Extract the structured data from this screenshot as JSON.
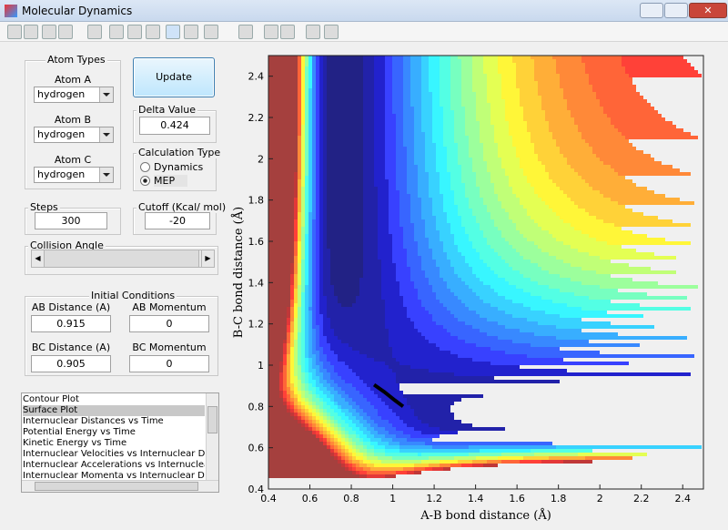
{
  "window": {
    "title": "Molecular Dynamics"
  },
  "atom_types": {
    "title": "Atom Types",
    "atoms": [
      {
        "label": "Atom A",
        "value": "hydrogen"
      },
      {
        "label": "Atom B",
        "value": "hydrogen"
      },
      {
        "label": "Atom C",
        "value": "hydrogen"
      }
    ]
  },
  "update_button": "Update",
  "delta_value": {
    "title": "Delta Value",
    "value": "0.424"
  },
  "calculation_type": {
    "title": "Calculation Type",
    "options": [
      "Dynamics",
      "MEP"
    ],
    "selected": 1
  },
  "steps": {
    "title": "Steps",
    "value": "300"
  },
  "cutoff": {
    "title": "Cutoff (Kcal/ mol)",
    "value": "-20"
  },
  "collision_angle": {
    "title": "Collision Angle"
  },
  "initial_conditions": {
    "title": "Initial Conditions",
    "fields": [
      {
        "label": "AB Distance (A)",
        "value": "0.915"
      },
      {
        "label": "AB Momentum",
        "value": "0"
      },
      {
        "label": "BC Distance (A)",
        "value": "0.905"
      },
      {
        "label": "BC Momentum",
        "value": "0"
      }
    ]
  },
  "plot_list": {
    "items": [
      "Contour Plot",
      "Surface Plot",
      "Internuclear Distances vs Time",
      "Potential Energy vs Time",
      "Kinetic Energy vs Time",
      "Internuclear Velocities vs Internuclear Distance",
      "Internuclear Accelerations vs Internuclear Dista",
      "Internuclear Momenta vs Internuclear Distance"
    ],
    "selected": 1
  },
  "chart_data": {
    "type": "contour",
    "x_label": "A-B bond distance (Å)",
    "y_label": "B-C bond distance (Å)",
    "xlim": [
      0.4,
      2.5
    ],
    "ylim": [
      0.4,
      2.5
    ],
    "xticks": [
      0.4,
      0.6,
      0.8,
      1,
      1.2,
      1.4,
      1.6,
      1.8,
      2,
      2.2,
      2.4
    ],
    "yticks": [
      0.4,
      0.6,
      0.8,
      1,
      1.2,
      1.4,
      1.6,
      1.8,
      2,
      2.2,
      2.4
    ],
    "trajectory": {
      "x": [
        0.91,
        0.96,
        1.01,
        1.05
      ],
      "y": [
        0.905,
        0.87,
        0.83,
        0.8
      ]
    }
  }
}
